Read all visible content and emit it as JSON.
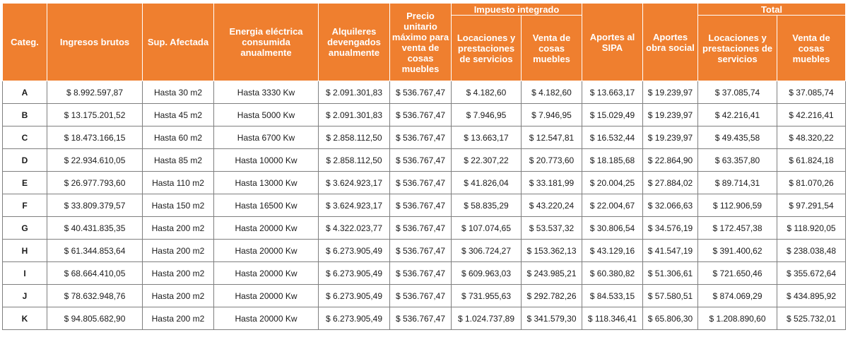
{
  "headers": {
    "categ": "Categ.",
    "ingresos": "Ingresos brutos",
    "sup": "Sup. Afectada",
    "energia": "Energia eléctrica consumida anualmente",
    "alquileres": "Alquileres devengados anualmente",
    "precio": "Precio unitario máximo para venta de cosas muebles",
    "impuesto_group": "Impuesto integrado",
    "imp_locaciones": "Locaciones y prestaciones de servicios",
    "imp_venta": "Venta de cosas muebles",
    "sipa": "Aportes al SIPA",
    "obra_social": "Aportes obra social",
    "total_group": "Total",
    "tot_locaciones": "Locaciones y prestaciones de servicios",
    "tot_venta": "Venta de cosas muebles"
  },
  "rows": [
    [
      "A",
      "$ 8.992.597,87",
      "Hasta 30 m2",
      "Hasta 3330 Kw",
      "$ 2.091.301,83",
      "$ 536.767,47",
      "$ 4.182,60",
      "$ 4.182,60",
      "$ 13.663,17",
      "$ 19.239,97",
      "$ 37.085,74",
      "$ 37.085,74"
    ],
    [
      "B",
      "$ 13.175.201,52",
      "Hasta 45 m2",
      "Hasta 5000 Kw",
      "$ 2.091.301,83",
      "$ 536.767,47",
      "$ 7.946,95",
      "$ 7.946,95",
      "$ 15.029,49",
      "$ 19.239,97",
      "$ 42.216,41",
      "$ 42.216,41"
    ],
    [
      "C",
      "$ 18.473.166,15",
      "Hasta 60 m2",
      "Hasta 6700 Kw",
      "$ 2.858.112,50",
      "$ 536.767,47",
      "$ 13.663,17",
      "$ 12.547,81",
      "$ 16.532,44",
      "$ 19.239,97",
      "$ 49.435,58",
      "$ 48.320,22"
    ],
    [
      "D",
      "$ 22.934.610,05",
      "Hasta 85 m2",
      "Hasta 10000 Kw",
      "$ 2.858.112,50",
      "$ 536.767,47",
      "$ 22.307,22",
      "$ 20.773,60",
      "$ 18.185,68",
      "$ 22.864,90",
      "$ 63.357,80",
      "$ 61.824,18"
    ],
    [
      "E",
      "$ 26.977.793,60",
      "Hasta 110 m2",
      "Hasta 13000 Kw",
      "$ 3.624.923,17",
      "$ 536.767,47",
      "$ 41.826,04",
      "$ 33.181,99",
      "$ 20.004,25",
      "$ 27.884,02",
      "$ 89.714,31",
      "$ 81.070,26"
    ],
    [
      "F",
      "$ 33.809.379,57",
      "Hasta 150 m2",
      "Hasta 16500 Kw",
      "$ 3.624.923,17",
      "$ 536.767,47",
      "$ 58.835,29",
      "$ 43.220,24",
      "$ 22.004,67",
      "$ 32.066,63",
      "$ 112.906,59",
      "$ 97.291,54"
    ],
    [
      "G",
      "$ 40.431.835,35",
      "Hasta 200 m2",
      "Hasta 20000 Kw",
      "$ 4.322.023,77",
      "$ 536.767,47",
      "$ 107.074,65",
      "$ 53.537,32",
      "$ 30.806,54",
      "$ 34.576,19",
      "$ 172.457,38",
      "$ 118.920,05"
    ],
    [
      "H",
      "$ 61.344.853,64",
      "Hasta 200 m2",
      "Hasta 20000 Kw",
      "$ 6.273.905,49",
      "$ 536.767,47",
      "$ 306.724,27",
      "$ 153.362,13",
      "$ 43.129,16",
      "$ 41.547,19",
      "$ 391.400,62",
      "$ 238.038,48"
    ],
    [
      "I",
      "$ 68.664.410,05",
      "Hasta 200 m2",
      "Hasta 20000 Kw",
      "$ 6.273.905,49",
      "$ 536.767,47",
      "$ 609.963,03",
      "$ 243.985,21",
      "$ 60.380,82",
      "$ 51.306,61",
      "$ 721.650,46",
      "$ 355.672,64"
    ],
    [
      "J",
      "$ 78.632.948,76",
      "Hasta 200 m2",
      "Hasta 20000 Kw",
      "$ 6.273.905,49",
      "$ 536.767,47",
      "$ 731.955,63",
      "$ 292.782,26",
      "$ 84.533,15",
      "$ 57.580,51",
      "$ 874.069,29",
      "$ 434.895,92"
    ],
    [
      "K",
      "$ 94.805.682,90",
      "Hasta 200 m2",
      "Hasta 20000 Kw",
      "$ 6.273.905,49",
      "$ 536.767,47",
      "$ 1.024.737,89",
      "$ 341.579,30",
      "$ 118.346,41",
      "$ 65.806,30",
      "$ 1.208.890,60",
      "$ 525.732,01"
    ]
  ],
  "colors": {
    "header_bg": "#ef7f2f",
    "header_text": "#ffffff",
    "grid_border": "#7f7f7f"
  }
}
